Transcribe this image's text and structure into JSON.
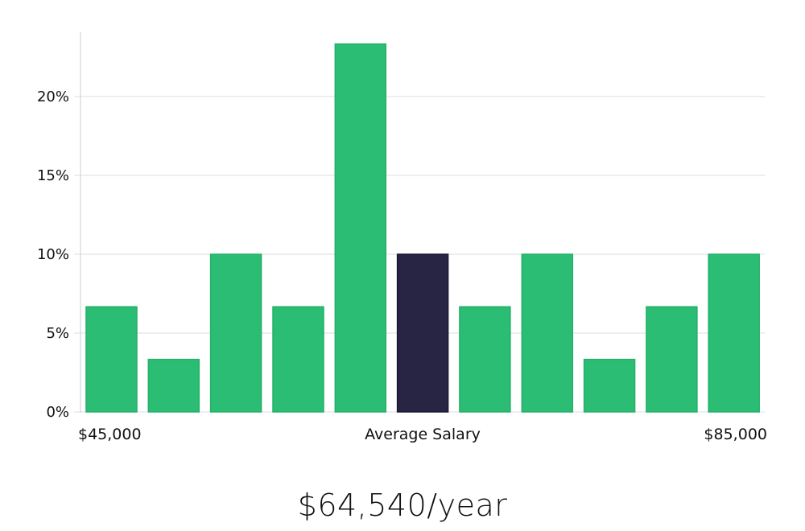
{
  "chart_data": {
    "type": "bar",
    "categories": [
      "1",
      "2",
      "3",
      "4",
      "5",
      "6",
      "7",
      "8",
      "9",
      "10",
      "11"
    ],
    "values": [
      6.67,
      3.33,
      10.0,
      6.67,
      23.33,
      10.0,
      6.67,
      10.0,
      3.33,
      6.67,
      10.0
    ],
    "highlight_index": 5,
    "ylim": [
      0,
      24
    ],
    "yticks": [
      0,
      5,
      10,
      15,
      20
    ],
    "ytick_labels": [
      "0%",
      "5%",
      "10%",
      "15%",
      "20%"
    ],
    "grid": true,
    "x_labels": {
      "min": "$45,000",
      "center": "Average Salary",
      "max": "$85,000"
    },
    "colors": {
      "bar": "#2bbd73",
      "highlight": "#282444",
      "grid": "#dddddd",
      "axis": "#cccccc"
    }
  },
  "summary": {
    "salary": "$64,540/year"
  }
}
